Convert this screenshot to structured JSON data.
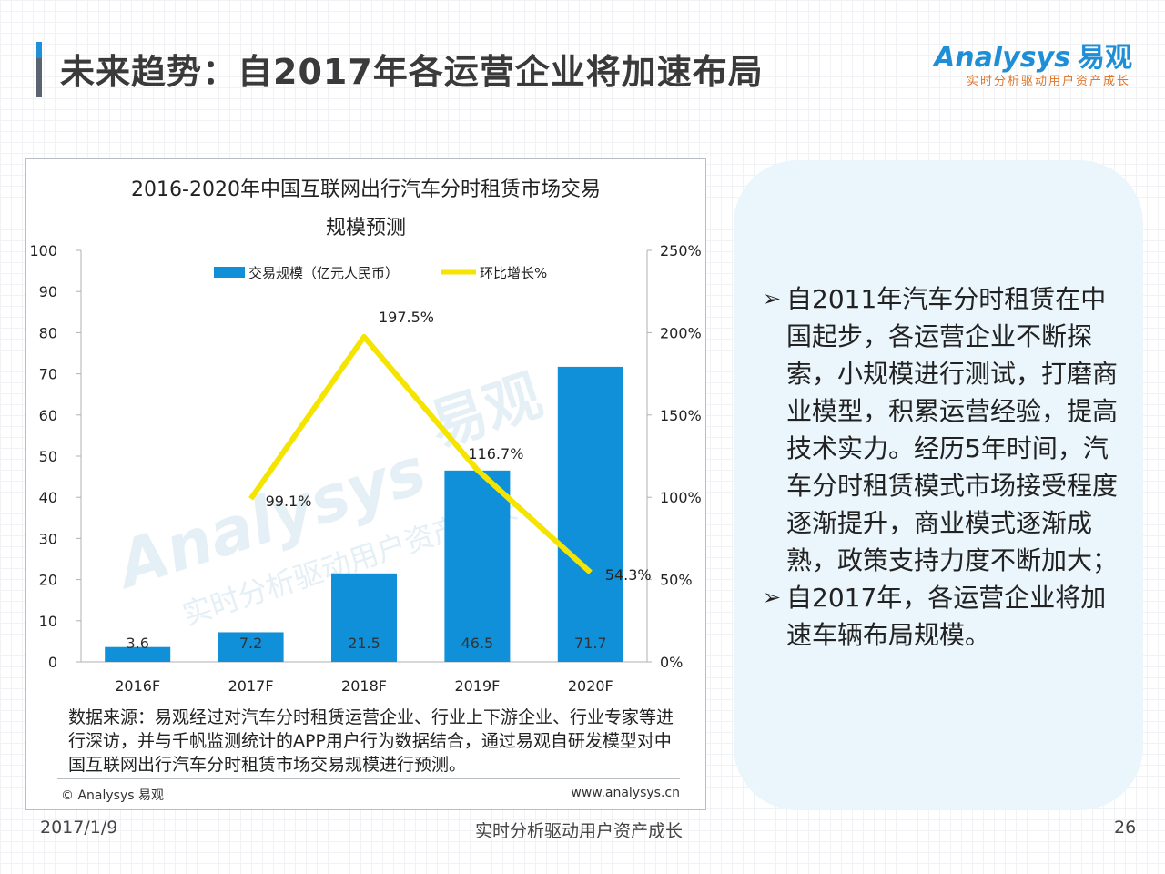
{
  "page": {
    "title": "未来趋势：自2017年各运营企业将加速布局",
    "logo_main": "Analysys",
    "logo_cn": "易观",
    "logo_sub": "实时分析驱动用户资产成长"
  },
  "chart_data": {
    "type": "bar",
    "title_line1": "2016-2020年中国互联网出行汽车分时租赁市场交易",
    "title_line2": "规模预测",
    "categories": [
      "2016F",
      "2017F",
      "2018F",
      "2019F",
      "2020F"
    ],
    "series": [
      {
        "name": "交易规模（亿元人民币）",
        "type": "bar",
        "axis": "left",
        "color": "#0f90d8",
        "values": [
          3.6,
          7.2,
          21.5,
          46.5,
          71.7
        ]
      },
      {
        "name": "环比增长%",
        "type": "line",
        "axis": "right",
        "color": "#f5e400",
        "values": [
          null,
          99.1,
          197.5,
          116.7,
          54.3
        ],
        "labels": [
          "",
          "99.1%",
          "197.5%",
          "116.7%",
          "54.3%"
        ]
      }
    ],
    "bar_labels": [
      "3.6",
      "7.2",
      "21.5",
      "46.5",
      "71.7"
    ],
    "y_left": {
      "ylim": [
        0,
        100
      ],
      "ticks": [
        "0",
        "10",
        "20",
        "30",
        "40",
        "50",
        "60",
        "70",
        "80",
        "90",
        "100"
      ]
    },
    "y_right": {
      "ylim": [
        0,
        250
      ],
      "ticks": [
        "0%",
        "50%",
        "100%",
        "150%",
        "200%",
        "250%"
      ]
    },
    "legend_placement": "top-center",
    "watermark_brand": "Analysys",
    "watermark_cn": "易观",
    "watermark_sub": "实时分析驱动用户资产成长"
  },
  "source": {
    "text": "数据来源：易观经过对汽车分时租赁运营企业、行业上下游企业、行业专家等进行深访，并与千帆监测统计的APP用户行为数据结合，通过易观自研发模型对中国互联网出行汽车分时租赁市场交易规模进行预测。",
    "copyright": "© Analysys 易观",
    "website": "www.analysys.cn"
  },
  "bullets": [
    {
      "arrow": "➢",
      "text": "自2011年汽车分时租赁在中国起步，各运营企业不断探索，小规模进行测试，打磨商业模型，积累运营经验，提高技术实力。经历5年时间，汽车分时租赁模式市场接受程度逐渐提升，商业模式逐渐成熟，政策支持力度不断加大；"
    },
    {
      "arrow": "➢",
      "text": "自2017年，各运营企业将加速车辆布局规模。"
    }
  ],
  "footer": {
    "date": "2017/1/9",
    "tagline": "实时分析驱动用户资产成长",
    "page": "26"
  }
}
